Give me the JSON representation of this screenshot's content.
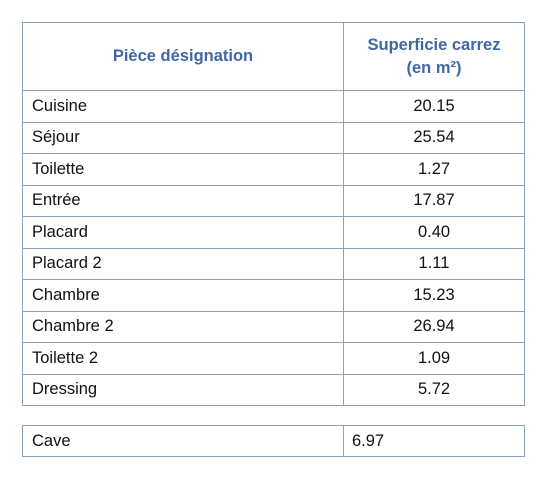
{
  "table": {
    "header": {
      "room_label": "Pièce désignation",
      "area_label_line1": "Superficie carrez",
      "area_label_line2": "(en m²)"
    },
    "rows": [
      {
        "room": "Cuisine",
        "area": "20.15"
      },
      {
        "room": "Séjour",
        "area": "25.54"
      },
      {
        "room": "Toilette",
        "area": "1.27"
      },
      {
        "room": "Entrée",
        "area": "17.87"
      },
      {
        "room": "Placard",
        "area": "0.40"
      },
      {
        "room": "Placard 2",
        "area": "1.11"
      },
      {
        "room": "Chambre",
        "area": "15.23"
      },
      {
        "room": "Chambre 2",
        "area": "26.94"
      },
      {
        "room": "Toilette 2",
        "area": "1.09"
      },
      {
        "room": "Dressing",
        "area": "5.72"
      }
    ]
  },
  "cave": {
    "room": "Cave",
    "area": "6.97"
  },
  "colors": {
    "header_text": "#3e67a3",
    "border": "#8aa3bf"
  }
}
